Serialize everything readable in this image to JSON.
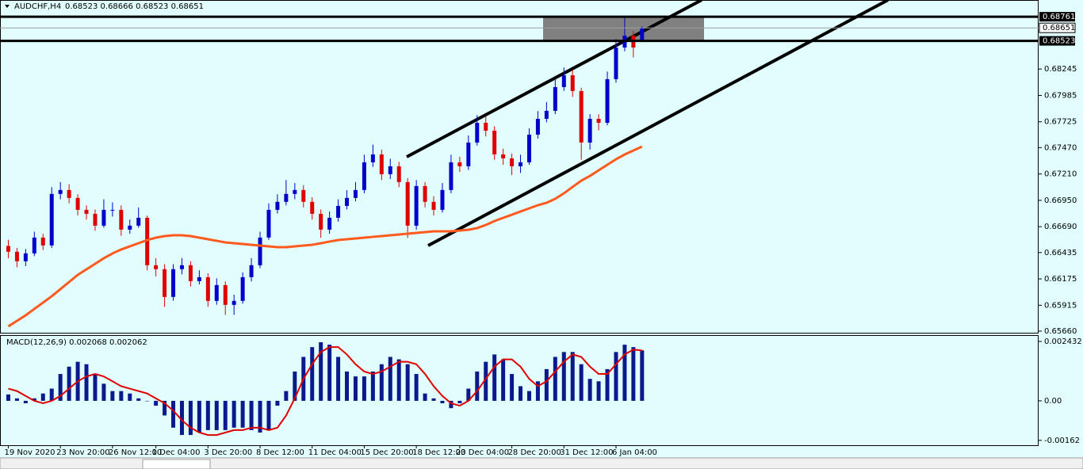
{
  "chart_data": [
    {
      "type": "candlestick",
      "title": "AUDCHF,H4",
      "quote": "0.68523 0.68666 0.68523 0.68651",
      "up_color": "#0000cd",
      "down_color": "#e00000",
      "categories": [
        "19 Nov 2020",
        null,
        null,
        null,
        null,
        null,
        "23 Nov 20:00",
        null,
        null,
        null,
        null,
        null,
        "26 Nov 12:00",
        null,
        null,
        null,
        null,
        "1 Dec 04:00",
        null,
        null,
        null,
        null,
        null,
        "3 Dec 20:00",
        null,
        null,
        null,
        null,
        null,
        "8 Dec 12:00",
        null,
        null,
        null,
        null,
        null,
        "11 Dec 04:00",
        null,
        null,
        null,
        null,
        null,
        "15 Dec 20:00",
        null,
        null,
        null,
        null,
        null,
        "18 Dec 12:00",
        null,
        null,
        null,
        null,
        "23 Dec 04:00",
        null,
        null,
        null,
        null,
        null,
        "28 Dec 20:00",
        null,
        null,
        null,
        null,
        null,
        "31 Dec 12:00",
        null,
        null,
        null,
        null,
        null,
        "6 Jan 04:00",
        null,
        null,
        null
      ],
      "open": [
        0.665,
        0.66443,
        0.66349,
        0.66427,
        0.66583,
        0.66505,
        0.67013,
        0.67052,
        0.66974,
        0.66856,
        0.66817,
        0.667,
        0.66856,
        0.66856,
        0.66661,
        0.667,
        0.66778,
        0.6631,
        0.66271,
        0.65997,
        0.66271,
        0.6631,
        0.66153,
        0.66192,
        0.65958,
        0.66114,
        0.65919,
        0.65958,
        0.66192,
        0.6631,
        0.66583,
        0.66856,
        0.66935,
        0.67013,
        0.67052,
        0.66935,
        0.66817,
        0.66661,
        0.66778,
        0.66895,
        0.66974,
        0.67052,
        0.67325,
        0.67403,
        0.67208,
        0.67286,
        0.6713,
        0.667,
        0.67091,
        0.66935,
        0.66856,
        0.67052,
        0.67325,
        0.67286,
        0.6752,
        0.67715,
        0.67637,
        0.67403,
        0.67364,
        0.67286,
        0.67325,
        0.67598,
        0.67754,
        0.67833,
        0.68067,
        0.68184,
        0.68028,
        0.6752,
        0.67754,
        0.67715,
        0.68145,
        0.68457,
        0.68574,
        0.68523
      ],
      "high": [
        0.6656,
        0.6648,
        0.6647,
        0.6664,
        0.6662,
        0.6708,
        0.6713,
        0.6711,
        0.6701,
        0.669,
        0.6686,
        0.6696,
        0.6693,
        0.669,
        0.6676,
        0.6688,
        0.668,
        0.6638,
        0.6632,
        0.6632,
        0.6638,
        0.6635,
        0.6626,
        0.6623,
        0.6618,
        0.6615,
        0.6602,
        0.6624,
        0.6638,
        0.6664,
        0.6692,
        0.6701,
        0.6715,
        0.6712,
        0.671,
        0.6698,
        0.6686,
        0.6684,
        0.6696,
        0.6705,
        0.6713,
        0.674,
        0.675,
        0.6745,
        0.6736,
        0.6733,
        0.6717,
        0.6715,
        0.6713,
        0.6699,
        0.6712,
        0.674,
        0.6738,
        0.6759,
        0.6779,
        0.6778,
        0.6768,
        0.6746,
        0.6741,
        0.674,
        0.6766,
        0.6783,
        0.6792,
        0.6815,
        0.6826,
        0.6824,
        0.6806,
        0.678,
        0.678,
        0.6822,
        0.6854,
        0.68761,
        0.6862,
        0.68666
      ],
      "low": [
        0.6638,
        0.6629,
        0.663,
        0.664,
        0.6646,
        0.6648,
        0.6696,
        0.6692,
        0.668,
        0.6676,
        0.6665,
        0.6668,
        0.6679,
        0.666,
        0.6662,
        0.6668,
        0.6626,
        0.662,
        0.659,
        0.6596,
        0.6622,
        0.661,
        0.6612,
        0.659,
        0.6592,
        0.6582,
        0.6582,
        0.6593,
        0.6615,
        0.6628,
        0.6656,
        0.6682,
        0.669,
        0.6696,
        0.6688,
        0.6676,
        0.6658,
        0.6662,
        0.6674,
        0.6686,
        0.6694,
        0.6702,
        0.6728,
        0.6715,
        0.6716,
        0.6708,
        0.6658,
        0.6666,
        0.6688,
        0.668,
        0.6683,
        0.6702,
        0.6723,
        0.6725,
        0.6749,
        0.6758,
        0.6735,
        0.673,
        0.672,
        0.6722,
        0.673,
        0.6756,
        0.6772,
        0.678,
        0.6803,
        0.6797,
        0.6735,
        0.6745,
        0.6764,
        0.6769,
        0.6811,
        0.6842,
        0.6836,
        0.68523
      ],
      "close": [
        0.66443,
        0.66349,
        0.66427,
        0.66583,
        0.66505,
        0.67013,
        0.67052,
        0.66974,
        0.66856,
        0.66817,
        0.667,
        0.66856,
        0.66856,
        0.66661,
        0.667,
        0.66778,
        0.6631,
        0.66271,
        0.65997,
        0.66271,
        0.6631,
        0.66153,
        0.66192,
        0.65958,
        0.66114,
        0.65919,
        0.65958,
        0.66192,
        0.6631,
        0.66583,
        0.66856,
        0.66935,
        0.67013,
        0.67052,
        0.66935,
        0.66817,
        0.66661,
        0.66778,
        0.66895,
        0.66974,
        0.67052,
        0.67325,
        0.67403,
        0.67208,
        0.67286,
        0.6713,
        0.667,
        0.67091,
        0.66935,
        0.66856,
        0.67052,
        0.67325,
        0.67286,
        0.6752,
        0.67715,
        0.67637,
        0.67403,
        0.67364,
        0.67286,
        0.67325,
        0.67598,
        0.67754,
        0.67833,
        0.68067,
        0.68184,
        0.68028,
        0.6752,
        0.67754,
        0.67715,
        0.68145,
        0.68457,
        0.68574,
        0.68457,
        0.68651
      ],
      "ma": {
        "color": "#ff5a1e",
        "values": [
          0.65707,
          0.65761,
          0.65816,
          0.65879,
          0.65941,
          0.66004,
          0.66074,
          0.66144,
          0.66215,
          0.66269,
          0.66324,
          0.66379,
          0.66426,
          0.66465,
          0.66496,
          0.66527,
          0.66558,
          0.66582,
          0.66597,
          0.66605,
          0.66605,
          0.66597,
          0.66582,
          0.66566,
          0.66551,
          0.66535,
          0.66527,
          0.66519,
          0.66511,
          0.66504,
          0.66496,
          0.66488,
          0.66488,
          0.66496,
          0.66504,
          0.66511,
          0.66527,
          0.66543,
          0.66558,
          0.66566,
          0.66574,
          0.66582,
          0.6659,
          0.66597,
          0.66605,
          0.66613,
          0.66621,
          0.66629,
          0.66636,
          0.66644,
          0.66644,
          0.66644,
          0.66652,
          0.6666,
          0.66676,
          0.66707,
          0.66746,
          0.66777,
          0.66808,
          0.6684,
          0.66871,
          0.66902,
          0.66926,
          0.66965,
          0.67019,
          0.67082,
          0.67144,
          0.67191,
          0.67246,
          0.67301,
          0.67355,
          0.67402,
          0.67441,
          0.6748
        ]
      },
      "levels": [
        0.68761,
        0.68523
      ],
      "last_price": 0.68651,
      "ylim": [
        0.65644,
        0.68926
      ],
      "yticks": [
        0.68245,
        0.67985,
        0.67725,
        {
          "value": 0.6747,
          "label": "0.67470"
        },
        {
          "value": 0.6721,
          "label": "0.67210"
        },
        {
          "value": 0.6695,
          "label": "0.66950"
        },
        {
          "value": 0.6669,
          "label": "0.66690"
        },
        0.66435,
        0.66175,
        0.65915,
        {
          "value": 0.6566,
          "label": "0.65660"
        }
      ]
    },
    {
      "type": "macd",
      "label": "MACD(12,26,9) 0.002068 0.002062",
      "histogram": {
        "color": "#0a1a8c",
        "values": [
          0.00026,
          0.0001,
          -0.0001,
          0.0001,
          0.0003,
          0.0005,
          0.0011,
          0.0014,
          0.0016,
          0.0015,
          0.0011,
          0.0007,
          0.0004,
          0.0004,
          0.0003,
          0.0001,
          0,
          -0.0002,
          -0.0006,
          -0.0011,
          -0.0014,
          -0.0014,
          -0.0013,
          -0.0012,
          -0.0012,
          -0.0012,
          -0.0011,
          -0.0011,
          -0.0012,
          -0.0013,
          -0.0012,
          -0.0002,
          0.0004,
          0.0012,
          0.0018,
          0.0022,
          0.0024,
          0.0023,
          0.0018,
          0.0012,
          0.001,
          0.001,
          0.0012,
          0.0015,
          0.0018,
          0.0017,
          0.0015,
          0.0011,
          0.0003,
          0.0001,
          -0.0001,
          -0.0003,
          -0.0001,
          0.0005,
          0.0012,
          0.0016,
          0.0019,
          0.0017,
          0.0011,
          0.0006,
          0.0004,
          0.0008,
          0.0013,
          0.0018,
          0.002,
          0.002,
          0.0015,
          0.0009,
          0.0008,
          0.0013,
          0.002,
          0.0023,
          0.0022,
          0.002068
        ]
      },
      "signal": {
        "color": "#e00000",
        "values": [
          0.0005,
          0.0004,
          0.0002,
          0,
          -0.0001,
          0,
          0.0002,
          0.0005,
          0.0008,
          0.001,
          0.0011,
          0.001,
          0.0008,
          0.0006,
          0.0005,
          0.0004,
          0.0003,
          0.0001,
          -0.0001,
          -0.0004,
          -0.0008,
          -0.0011,
          -0.0013,
          -0.0014,
          -0.0014,
          -0.0013,
          -0.0012,
          -0.0012,
          -0.0011,
          -0.0011,
          -0.0012,
          -0.0011,
          -0.0006,
          0.0001,
          0.0009,
          0.0015,
          0.002,
          0.0022,
          0.0022,
          0.0019,
          0.0015,
          0.0012,
          0.0011,
          0.0012,
          0.0014,
          0.0016,
          0.0016,
          0.0015,
          0.0011,
          0.0006,
          0.0002,
          -0.0001,
          -0.0002,
          0,
          0.0004,
          0.0009,
          0.0014,
          0.0017,
          0.0017,
          0.0014,
          0.0009,
          0.0006,
          0.0008,
          0.0012,
          0.0016,
          0.0019,
          0.0018,
          0.0014,
          0.0011,
          0.0011,
          0.0015,
          0.0019,
          0.0021,
          0.002062
        ]
      },
      "ylim": [
        -0.00182,
        0.00266
      ],
      "yticks": [
        0.002432,
        {
          "value": 0,
          "label": "0.00"
        },
        -0.00162
      ]
    }
  ]
}
